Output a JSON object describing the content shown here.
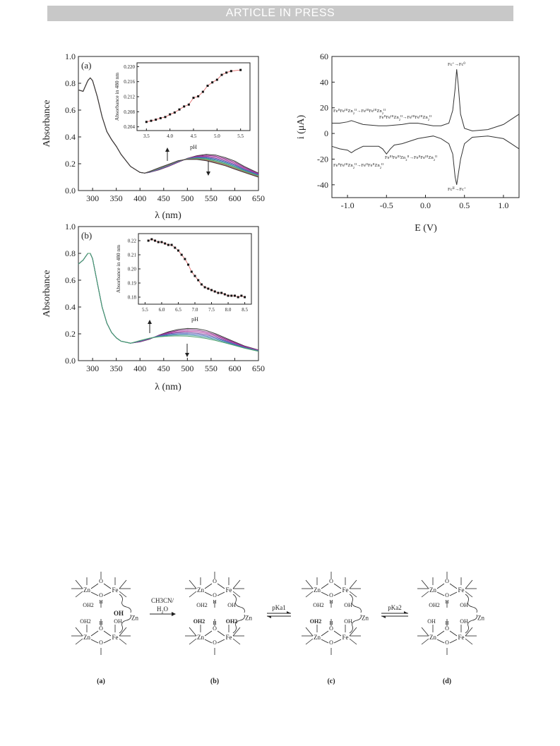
{
  "header": {
    "banner": "ARTICLE IN PRESS"
  },
  "colors": {
    "spectra": [
      "#3a3a3a",
      "#8a2a8a",
      "#b03aa0",
      "#6a4aa0",
      "#4a6ac0",
      "#3a90a0",
      "#4aa06a",
      "#70b070",
      "#c06060"
    ],
    "fit_line": "#e06060",
    "points": "#111111",
    "cv_line": "#333333"
  },
  "figures": {
    "spectrum_a": {
      "panel_label": "(a)",
      "xlabel": "λ (nm)",
      "ylabel": "Absorbance",
      "x_ticks": [
        "300",
        "350",
        "400",
        "450",
        "500",
        "550",
        "600",
        "650"
      ],
      "y_ticks": [
        "0.0",
        "0.2",
        "0.4",
        "0.6",
        "0.8",
        "1.0"
      ],
      "inset": {
        "xlabel": "pH",
        "ylabel": "Absorbance in 480 nm",
        "x_ticks": [
          "3.5",
          "4.0",
          "4.5",
          "5.0",
          "5.5"
        ],
        "y_ticks": [
          "0.204",
          "0.208",
          "0.212",
          "0.216",
          "0.220"
        ]
      }
    },
    "spectrum_b": {
      "panel_label": "(b)",
      "xlabel": "λ (nm)",
      "ylabel": "Absorbance",
      "x_ticks": [
        "300",
        "350",
        "400",
        "450",
        "500",
        "550",
        "600",
        "650"
      ],
      "y_ticks": [
        "0.0",
        "0.2",
        "0.4",
        "0.6",
        "0.8",
        "1.0"
      ],
      "inset": {
        "xlabel": "pH",
        "ylabel": "Absorbance in 480 nm",
        "x_ticks": [
          "5.5",
          "6.0",
          "6.5",
          "7.0",
          "7.5",
          "8.0",
          "8.5"
        ],
        "y_ticks": [
          "0.18",
          "0.19",
          "0.20",
          "0.21",
          "0.22"
        ]
      }
    },
    "cv": {
      "xlabel": "E (V)",
      "ylabel": "i (μA)",
      "x_ticks": [
        "-1.0",
        "-0.5",
        "0.0",
        "0.5",
        "1.0"
      ],
      "y_ticks": [
        "-40",
        "-20",
        "0",
        "20",
        "40",
        "60"
      ],
      "annotations": {
        "fc_ox": "Fc+→Fc0",
        "fc_red": "FcII→Fc+",
        "upper_left": "FeIIFeIIIZn2II→FeIIIFeIIIZn2II",
        "upper_mid": "FeIIFeIIIZn2II→FeIIIFeIIIZn2II",
        "lower_mid": "FeIIIFeIIIZn2II→FeIIFeIIIZn2II",
        "lower_left": "FeIIFeIIIZn2II→FeIIFeIIZn2II"
      }
    }
  },
  "scheme": {
    "arrow1_top": "CH3CN/",
    "arrow1_bottom": "H2O",
    "arrow2": "pKa1",
    "arrow3": "pKa2",
    "labels": [
      "(a)",
      "(b)",
      "(c)",
      "(d)"
    ],
    "atoms": {
      "zn": "Zn",
      "fe": "Fe",
      "o": "O",
      "h": "H",
      "oh2": "OH2",
      "oh": "OH"
    }
  },
  "chart_data": [
    {
      "type": "line",
      "title": "(a)",
      "xlabel": "λ (nm)",
      "ylabel": "Absorbance",
      "xlim": [
        270,
        650
      ],
      "ylim": [
        0,
        1.0
      ],
      "series_note_excluded": true,
      "spectra": {
        "x": [
          270,
          280,
          290,
          295,
          300,
          310,
          320,
          330,
          340,
          350,
          360,
          380,
          400,
          410,
          420,
          440,
          460,
          480,
          500,
          520,
          540,
          560,
          580,
          600,
          620,
          650
        ],
        "series": [
          {
            "values": [
              0.75,
              0.74,
              0.82,
              0.84,
              0.82,
              0.7,
              0.55,
              0.44,
              0.38,
              0.33,
              0.27,
              0.18,
              0.135,
              0.13,
              0.135,
              0.155,
              0.18,
              0.21,
              0.24,
              0.26,
              0.27,
              0.265,
              0.245,
              0.22,
              0.18,
              0.13
            ]
          },
          {
            "values": [
              0.75,
              0.74,
              0.82,
              0.84,
              0.82,
              0.7,
              0.55,
              0.44,
              0.38,
              0.33,
              0.27,
              0.18,
              0.135,
              0.13,
              0.137,
              0.16,
              0.185,
              0.215,
              0.238,
              0.25,
              0.25,
              0.24,
              0.22,
              0.195,
              0.16,
              0.12
            ]
          },
          {
            "values": [
              0.75,
              0.74,
              0.82,
              0.84,
              0.82,
              0.7,
              0.55,
              0.44,
              0.38,
              0.33,
              0.27,
              0.18,
              0.135,
              0.13,
              0.14,
              0.165,
              0.19,
              0.22,
              0.236,
              0.24,
              0.235,
              0.22,
              0.2,
              0.175,
              0.145,
              0.11
            ]
          },
          {
            "values": [
              0.75,
              0.74,
              0.82,
              0.84,
              0.82,
              0.7,
              0.55,
              0.44,
              0.38,
              0.33,
              0.27,
              0.18,
              0.135,
              0.13,
              0.142,
              0.17,
              0.195,
              0.222,
              0.233,
              0.232,
              0.222,
              0.205,
              0.185,
              0.16,
              0.135,
              0.1
            ]
          }
        ]
      },
      "inset": {
        "type": "scatter",
        "xlabel": "pH",
        "ylabel": "Absorbance in 480 nm",
        "xlim": [
          3.3,
          5.7
        ],
        "ylim": [
          0.203,
          0.221
        ],
        "x": [
          3.5,
          3.6,
          3.7,
          3.8,
          3.9,
          4.0,
          4.1,
          4.2,
          4.3,
          4.4,
          4.5,
          4.6,
          4.7,
          4.8,
          4.9,
          5.0,
          5.1,
          5.2,
          5.3,
          5.5
        ],
        "y": [
          0.2053,
          0.2056,
          0.2059,
          0.2063,
          0.2066,
          0.2073,
          0.2078,
          0.2086,
          0.2094,
          0.2099,
          0.2117,
          0.2121,
          0.2133,
          0.2149,
          0.2158,
          0.2165,
          0.2178,
          0.2184,
          0.2188,
          0.2191
        ]
      }
    },
    {
      "type": "line",
      "title": "(b)",
      "xlabel": "λ (nm)",
      "ylabel": "Absorbance",
      "xlim": [
        270,
        650
      ],
      "ylim": [
        0,
        1.0
      ],
      "spectra": {
        "x": [
          270,
          280,
          290,
          295,
          300,
          310,
          320,
          330,
          340,
          350,
          360,
          380,
          400,
          420,
          440,
          460,
          480,
          500,
          520,
          540,
          560,
          580,
          600,
          620,
          650
        ],
        "series": [
          {
            "values": [
              0.72,
              0.75,
              0.8,
              0.8,
              0.76,
              0.58,
              0.4,
              0.28,
              0.21,
              0.17,
              0.145,
              0.13,
              0.14,
              0.16,
              0.19,
              0.215,
              0.232,
              0.24,
              0.238,
              0.225,
              0.2,
              0.17,
              0.14,
              0.11,
              0.08
            ]
          },
          {
            "values": [
              0.72,
              0.75,
              0.8,
              0.8,
              0.76,
              0.58,
              0.4,
              0.28,
              0.21,
              0.17,
              0.145,
              0.13,
              0.145,
              0.165,
              0.185,
              0.2,
              0.208,
              0.21,
              0.205,
              0.193,
              0.175,
              0.15,
              0.125,
              0.1,
              0.075
            ]
          },
          {
            "values": [
              0.72,
              0.75,
              0.8,
              0.8,
              0.76,
              0.58,
              0.4,
              0.28,
              0.21,
              0.17,
              0.145,
              0.13,
              0.15,
              0.168,
              0.178,
              0.183,
              0.185,
              0.183,
              0.176,
              0.165,
              0.15,
              0.132,
              0.113,
              0.093,
              0.07
            ]
          }
        ]
      },
      "inset": {
        "type": "scatter",
        "xlabel": "pH",
        "ylabel": "Absorbance in 480 nm",
        "xlim": [
          5.3,
          8.7
        ],
        "ylim": [
          0.175,
          0.225
        ],
        "x": [
          5.6,
          5.7,
          5.8,
          5.9,
          6.0,
          6.1,
          6.2,
          6.3,
          6.4,
          6.5,
          6.6,
          6.7,
          6.8,
          6.9,
          7.0,
          7.1,
          7.2,
          7.3,
          7.4,
          7.5,
          7.6,
          7.7,
          7.8,
          7.9,
          8.0,
          8.1,
          8.2,
          8.3,
          8.4,
          8.5
        ],
        "y": [
          0.22,
          0.221,
          0.22,
          0.219,
          0.219,
          0.218,
          0.217,
          0.217,
          0.215,
          0.213,
          0.21,
          0.207,
          0.203,
          0.198,
          0.195,
          0.192,
          0.189,
          0.187,
          0.186,
          0.185,
          0.184,
          0.183,
          0.183,
          0.182,
          0.181,
          0.181,
          0.181,
          0.18,
          0.181,
          0.18
        ]
      }
    },
    {
      "type": "line",
      "xlabel": "E (V)",
      "ylabel": "i (μA)",
      "xlim": [
        -1.2,
        1.2
      ],
      "ylim": [
        -50,
        60
      ],
      "series": [
        {
          "x": [
            -1.2,
            -1.1,
            -1.0,
            -0.95,
            -0.9,
            -0.8,
            -0.6,
            -0.5,
            -0.3,
            -0.2,
            -0.1,
            0.0,
            0.1,
            0.2,
            0.3,
            0.35,
            0.38,
            0.4,
            0.42,
            0.45,
            0.5,
            0.6,
            0.8,
            1.0,
            1.1,
            1.2
          ],
          "y": [
            8,
            8,
            9,
            10,
            9,
            7,
            6,
            6,
            7,
            8,
            8,
            7,
            6,
            6,
            8,
            18,
            35,
            50,
            38,
            15,
            4,
            2,
            3,
            7,
            11,
            15
          ]
        },
        {
          "x": [
            1.2,
            1.1,
            1.0,
            0.8,
            0.6,
            0.5,
            0.45,
            0.42,
            0.4,
            0.38,
            0.35,
            0.3,
            0.2,
            0.1,
            0.0,
            -0.1,
            -0.2,
            -0.3,
            -0.4,
            -0.45,
            -0.5,
            -0.55,
            -0.6,
            -0.8,
            -0.9,
            -0.95,
            -1.0,
            -1.1,
            -1.2
          ],
          "y": [
            -12,
            -8,
            -4,
            -2,
            -3,
            -8,
            -20,
            -32,
            -40,
            -34,
            -16,
            -8,
            -4,
            -2,
            -3,
            -4,
            -6,
            -8,
            -9,
            -12,
            -16,
            -12,
            -10,
            -10,
            -13,
            -15,
            -13,
            -12,
            -10
          ]
        }
      ]
    }
  ]
}
